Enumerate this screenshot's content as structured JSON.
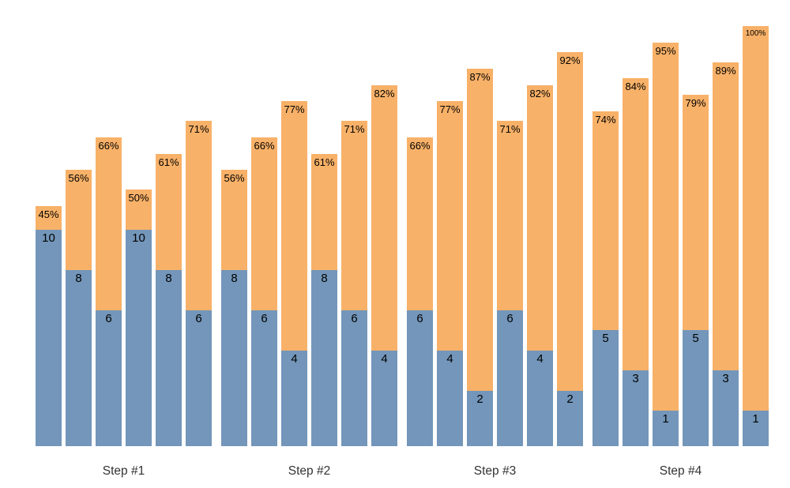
{
  "chart_data": {
    "type": "bar",
    "variant": "overlay-stacked-columns",
    "title": "",
    "xlabel": "",
    "ylabel": "",
    "grid": false,
    "legend_position": "none",
    "axes_visible": false,
    "background_color": "#ffffff",
    "colors": {
      "percent_bar": "#f8b168",
      "count_bar": "#7396ba",
      "bar_label_text": "#000000",
      "group_label_text": "#333333"
    },
    "percent_axis_range": [
      0,
      100
    ],
    "count_axis_note": "counts shown as labels at blue segment top",
    "groups": [
      {
        "label": "Step #1",
        "bars": [
          {
            "value": 10,
            "percent": 45
          },
          {
            "value": 8,
            "percent": 56
          },
          {
            "value": 6,
            "percent": 66
          },
          {
            "value": 10,
            "percent": 50
          },
          {
            "value": 8,
            "percent": 61
          },
          {
            "value": 6,
            "percent": 71
          }
        ]
      },
      {
        "label": "Step #2",
        "bars": [
          {
            "value": 8,
            "percent": 56
          },
          {
            "value": 6,
            "percent": 66
          },
          {
            "value": 4,
            "percent": 77
          },
          {
            "value": 8,
            "percent": 61
          },
          {
            "value": 6,
            "percent": 71
          },
          {
            "value": 4,
            "percent": 82
          }
        ]
      },
      {
        "label": "Step #3",
        "bars": [
          {
            "value": 6,
            "percent": 66
          },
          {
            "value": 4,
            "percent": 77
          },
          {
            "value": 2,
            "percent": 87
          },
          {
            "value": 6,
            "percent": 71
          },
          {
            "value": 4,
            "percent": 82
          },
          {
            "value": 2,
            "percent": 92
          }
        ]
      },
      {
        "label": "Step #4",
        "bars": [
          {
            "value": 5,
            "percent": 74
          },
          {
            "value": 3,
            "percent": 84
          },
          {
            "value": 1,
            "percent": 95
          },
          {
            "value": 5,
            "percent": 79
          },
          {
            "value": 3,
            "percent": 89
          },
          {
            "value": 1,
            "percent": 100
          }
        ]
      }
    ]
  }
}
